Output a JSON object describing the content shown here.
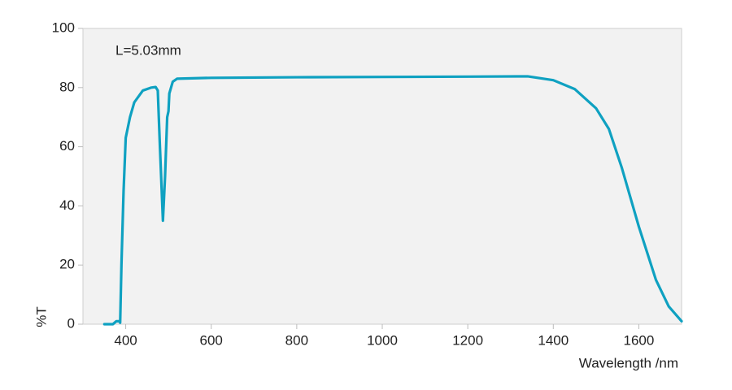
{
  "chart_data": {
    "type": "line",
    "annotation": "L=5.03mm",
    "y_label": "%T",
    "x_label": "Wavelength /nm",
    "x": [
      350,
      370,
      378,
      385,
      387,
      390,
      395,
      400,
      410,
      420,
      440,
      460,
      470,
      475,
      480,
      487,
      492,
      497,
      500,
      502,
      510,
      520,
      600,
      800,
      1000,
      1200,
      1340,
      1400,
      1450,
      1500,
      1530,
      1560,
      1600,
      1640,
      1670,
      1700
    ],
    "values": [
      0,
      0,
      1,
      1,
      0.5,
      20,
      45,
      63,
      70,
      75,
      79,
      80,
      80.2,
      79,
      60,
      35,
      50,
      70,
      72,
      78,
      82,
      83,
      83.3,
      83.5,
      83.6,
      83.7,
      83.8,
      82.5,
      79.5,
      73,
      66,
      53,
      33,
      15,
      6,
      1
    ],
    "color": "#0fa1c1",
    "xlim": [
      300,
      1700
    ],
    "xticks": [
      400,
      600,
      800,
      1000,
      1200,
      1400,
      1600
    ],
    "ylim": [
      0,
      100
    ],
    "yticks": [
      0,
      20,
      40,
      60,
      80,
      100
    ],
    "grid": false
  }
}
